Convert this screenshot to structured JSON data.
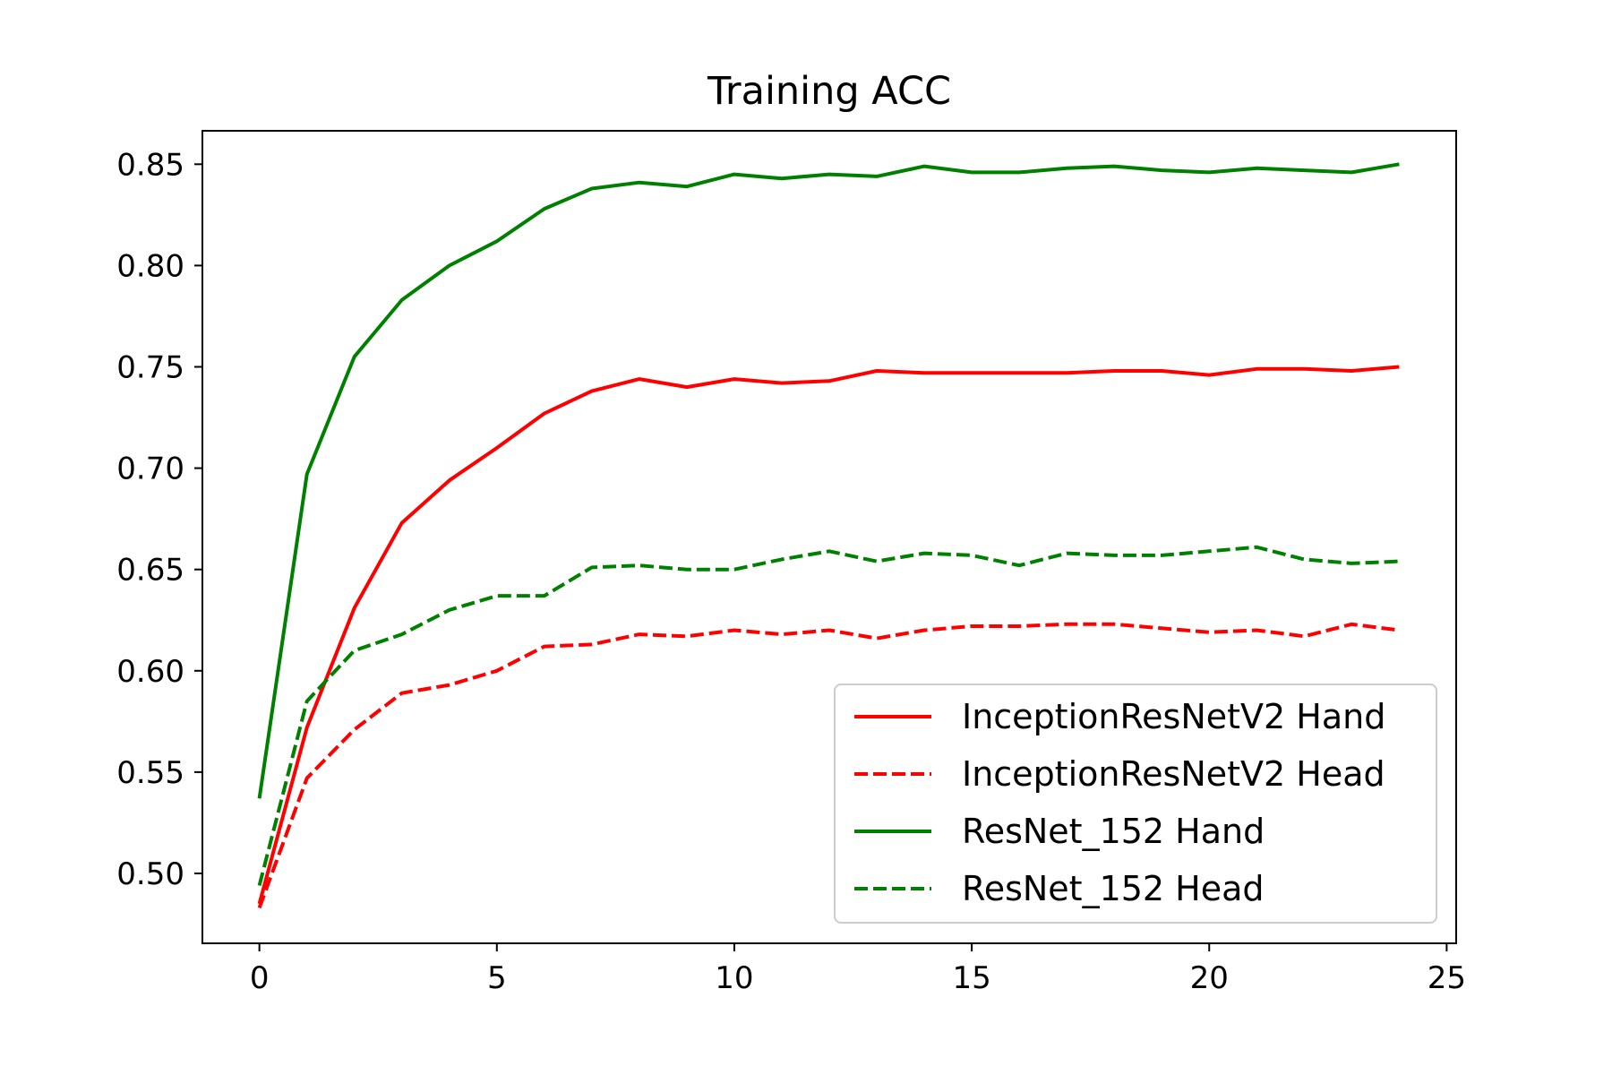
{
  "chart_data": {
    "type": "line",
    "title": "Training ACC",
    "xlabel": "",
    "ylabel": "",
    "xlim": [
      -1.2,
      25.2
    ],
    "ylim": [
      0.4655,
      0.8665
    ],
    "xticks": [
      0,
      5,
      10,
      15,
      20,
      25
    ],
    "yticks": [
      0.5,
      0.55,
      0.6,
      0.65,
      0.7,
      0.75,
      0.8,
      0.85
    ],
    "grid": false,
    "legend_position": "lower-right",
    "x": [
      0,
      1,
      2,
      3,
      4,
      5,
      6,
      7,
      8,
      9,
      10,
      11,
      12,
      13,
      14,
      15,
      16,
      17,
      18,
      19,
      20,
      21,
      22,
      23,
      24
    ],
    "series": [
      {
        "name": "InceptionResNetV2 Hand",
        "color": "#ff0000",
        "dash": "solid",
        "values": [
          0.485,
          0.572,
          0.631,
          0.673,
          0.694,
          0.71,
          0.727,
          0.738,
          0.744,
          0.74,
          0.744,
          0.742,
          0.743,
          0.748,
          0.747,
          0.747,
          0.747,
          0.747,
          0.748,
          0.748,
          0.746,
          0.749,
          0.749,
          0.748,
          0.75
        ]
      },
      {
        "name": "InceptionResNetV2 Head",
        "color": "#ff0000",
        "dash": "dashed",
        "values": [
          0.483,
          0.547,
          0.571,
          0.589,
          0.593,
          0.6,
          0.612,
          0.613,
          0.618,
          0.617,
          0.62,
          0.618,
          0.62,
          0.616,
          0.62,
          0.622,
          0.622,
          0.623,
          0.623,
          0.621,
          0.619,
          0.62,
          0.617,
          0.623,
          0.62
        ]
      },
      {
        "name": "ResNet_152 Hand",
        "color": "#008000",
        "dash": "solid",
        "values": [
          0.537,
          0.697,
          0.755,
          0.783,
          0.8,
          0.812,
          0.828,
          0.838,
          0.841,
          0.839,
          0.845,
          0.843,
          0.845,
          0.844,
          0.849,
          0.846,
          0.846,
          0.848,
          0.849,
          0.847,
          0.846,
          0.848,
          0.847,
          0.846,
          0.85
        ]
      },
      {
        "name": "ResNet_152 Head",
        "color": "#008000",
        "dash": "dashed",
        "values": [
          0.494,
          0.585,
          0.61,
          0.618,
          0.63,
          0.637,
          0.637,
          0.651,
          0.652,
          0.65,
          0.65,
          0.655,
          0.659,
          0.654,
          0.658,
          0.657,
          0.652,
          0.658,
          0.657,
          0.657,
          0.659,
          0.661,
          0.655,
          0.653,
          0.654
        ]
      }
    ]
  }
}
